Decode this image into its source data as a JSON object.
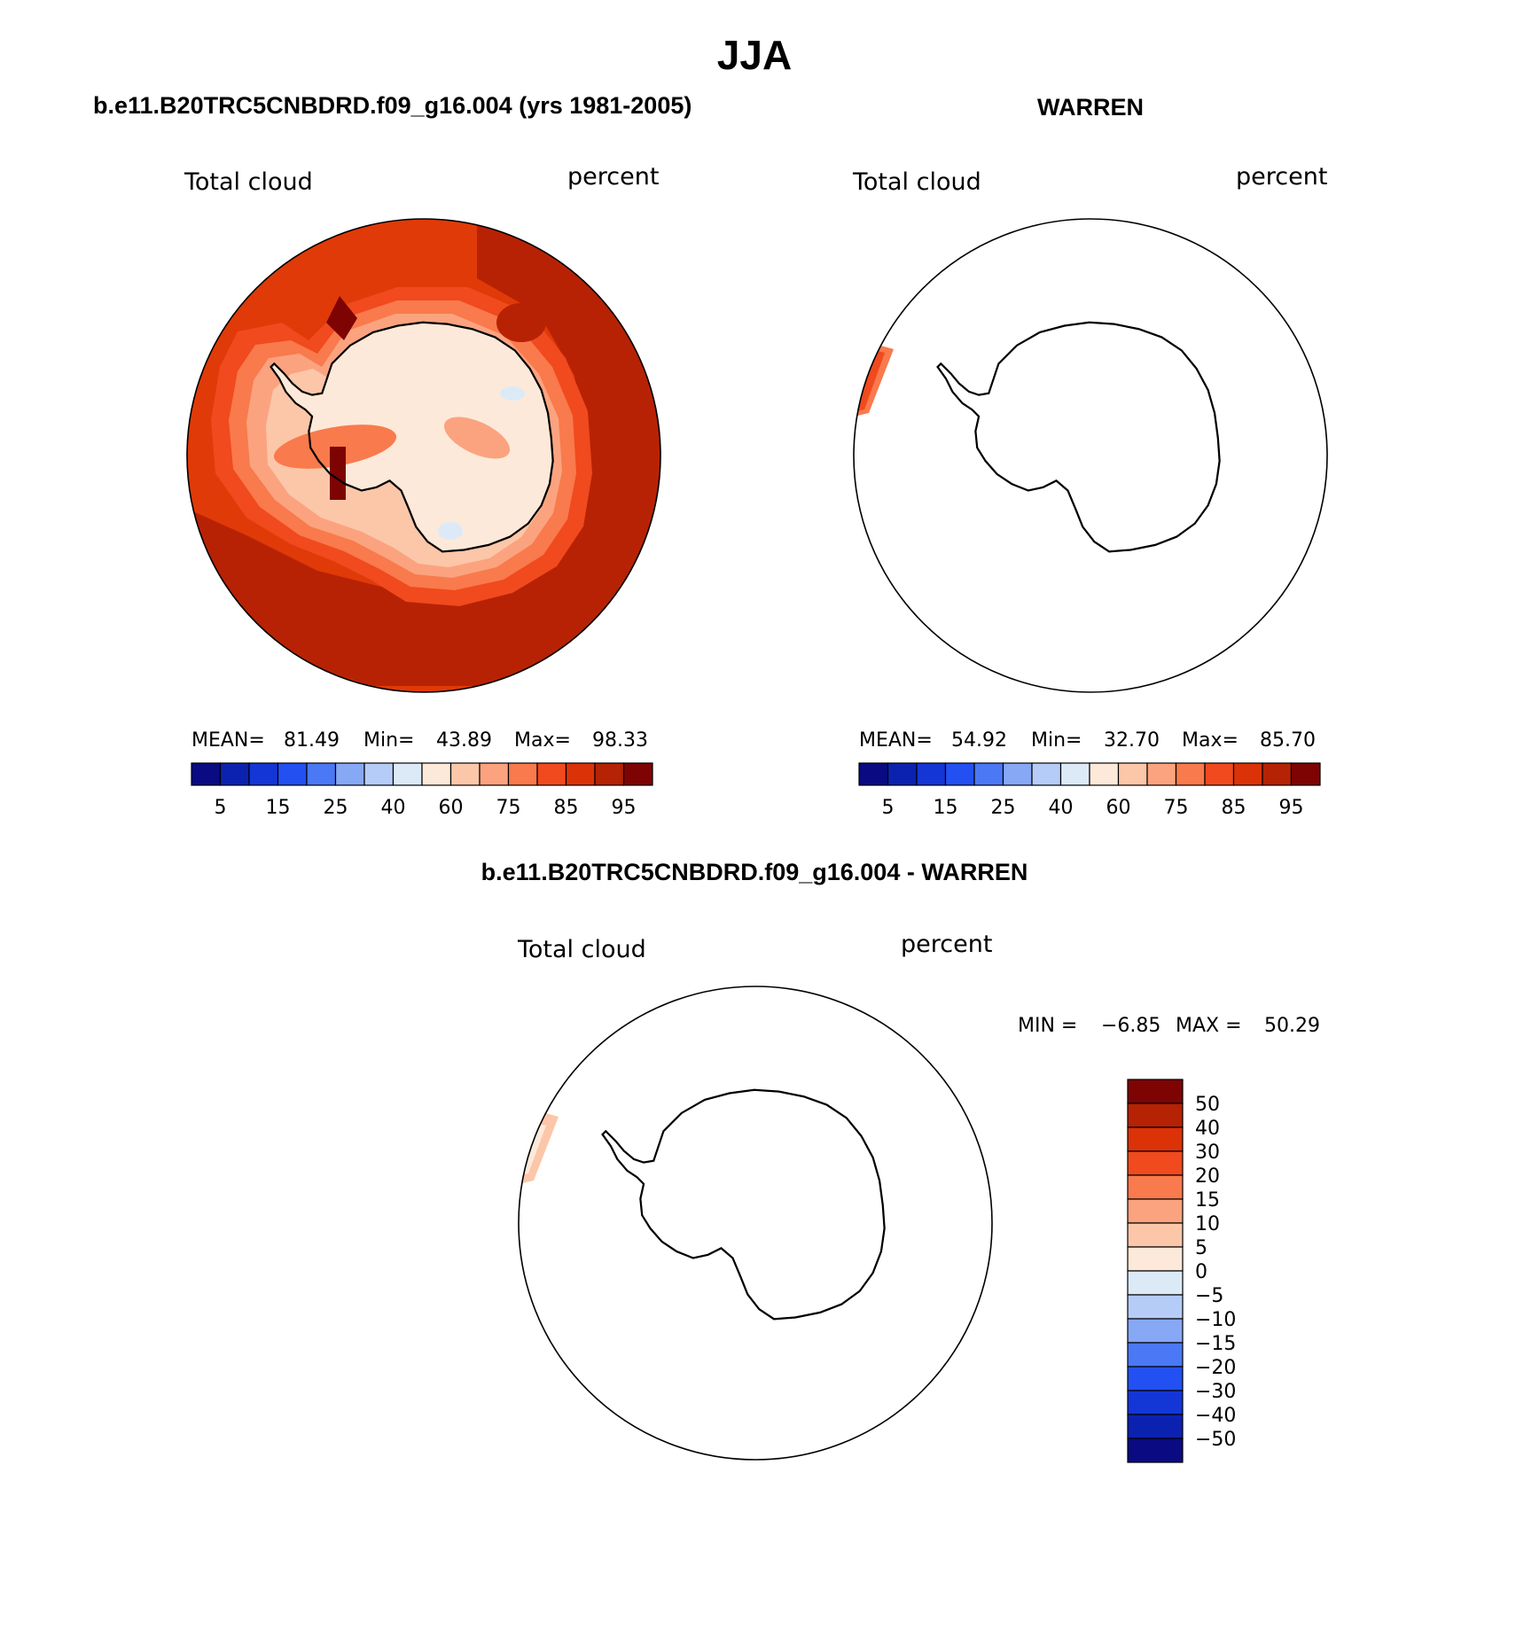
{
  "page_title": "JJA",
  "panels": [
    {
      "title": "b.e11.B20TRC5CNBDRD.f09_g16.004 (yrs 1981-2005)",
      "left_label": "Total cloud",
      "right_label": "percent",
      "stats": {
        "mean_label": "MEAN=",
        "mean": "81.49",
        "min_label": "Min=",
        "min": "43.89",
        "max_label": "Max=",
        "max": "98.33"
      }
    },
    {
      "title": "WARREN",
      "left_label": "Total cloud",
      "right_label": "percent",
      "stats": {
        "mean_label": "MEAN=",
        "mean": "54.92",
        "min_label": "Min=",
        "min": "32.70",
        "max_label": "Max=",
        "max": "85.70"
      }
    },
    {
      "title": "b.e11.B20TRC5CNBDRD.f09_g16.004 - WARREN",
      "left_label": "Total cloud",
      "right_label": "percent",
      "stats": {
        "min_label": "MIN =",
        "min": "−6.85",
        "max_label": "MAX =",
        "max": "50.29"
      }
    }
  ],
  "colorbar_abs": {
    "colors": [
      "#0a0a82",
      "#0b22b0",
      "#1436d6",
      "#2350f2",
      "#4b78f5",
      "#86a8f5",
      "#b6ccf8",
      "#dceaf8",
      "#fde9d9",
      "#fcc6a9",
      "#fba37f",
      "#f97a4c",
      "#f04a1e",
      "#dc3208",
      "#b52204",
      "#7e0404"
    ],
    "tick_labels": [
      "5",
      "15",
      "25",
      "40",
      "60",
      "75",
      "85",
      "95"
    ]
  },
  "colorbar_diff": {
    "colors": [
      "#0a0a82",
      "#0b22b0",
      "#1436d6",
      "#2350f2",
      "#4b78f5",
      "#86a8f5",
      "#b6ccf8",
      "#dceaf8",
      "#fde9d9",
      "#fcc6a9",
      "#fba37f",
      "#f97a4c",
      "#f04a1e",
      "#dc3208",
      "#b52204",
      "#7e0404"
    ],
    "tick_labels": [
      "−50",
      "−40",
      "−30",
      "−20",
      "−15",
      "−10",
      "−5",
      "0",
      "5",
      "10",
      "15",
      "20",
      "30",
      "40",
      "50"
    ]
  },
  "map_colors": {
    "ocean_high": "#e03a08",
    "ocean_very_high": "#b82204",
    "max_cell": "#7e0404",
    "coast_gradient": [
      "#f04a1e",
      "#f97a4c",
      "#fba37f",
      "#fcc6a9"
    ],
    "interior": "#fde9d9",
    "low": "#dceaf8",
    "warren_strip": [
      "#f04a1e",
      "#f97a4c"
    ],
    "diff_strip": [
      "#fcc6a9",
      "#fde9d9"
    ]
  }
}
